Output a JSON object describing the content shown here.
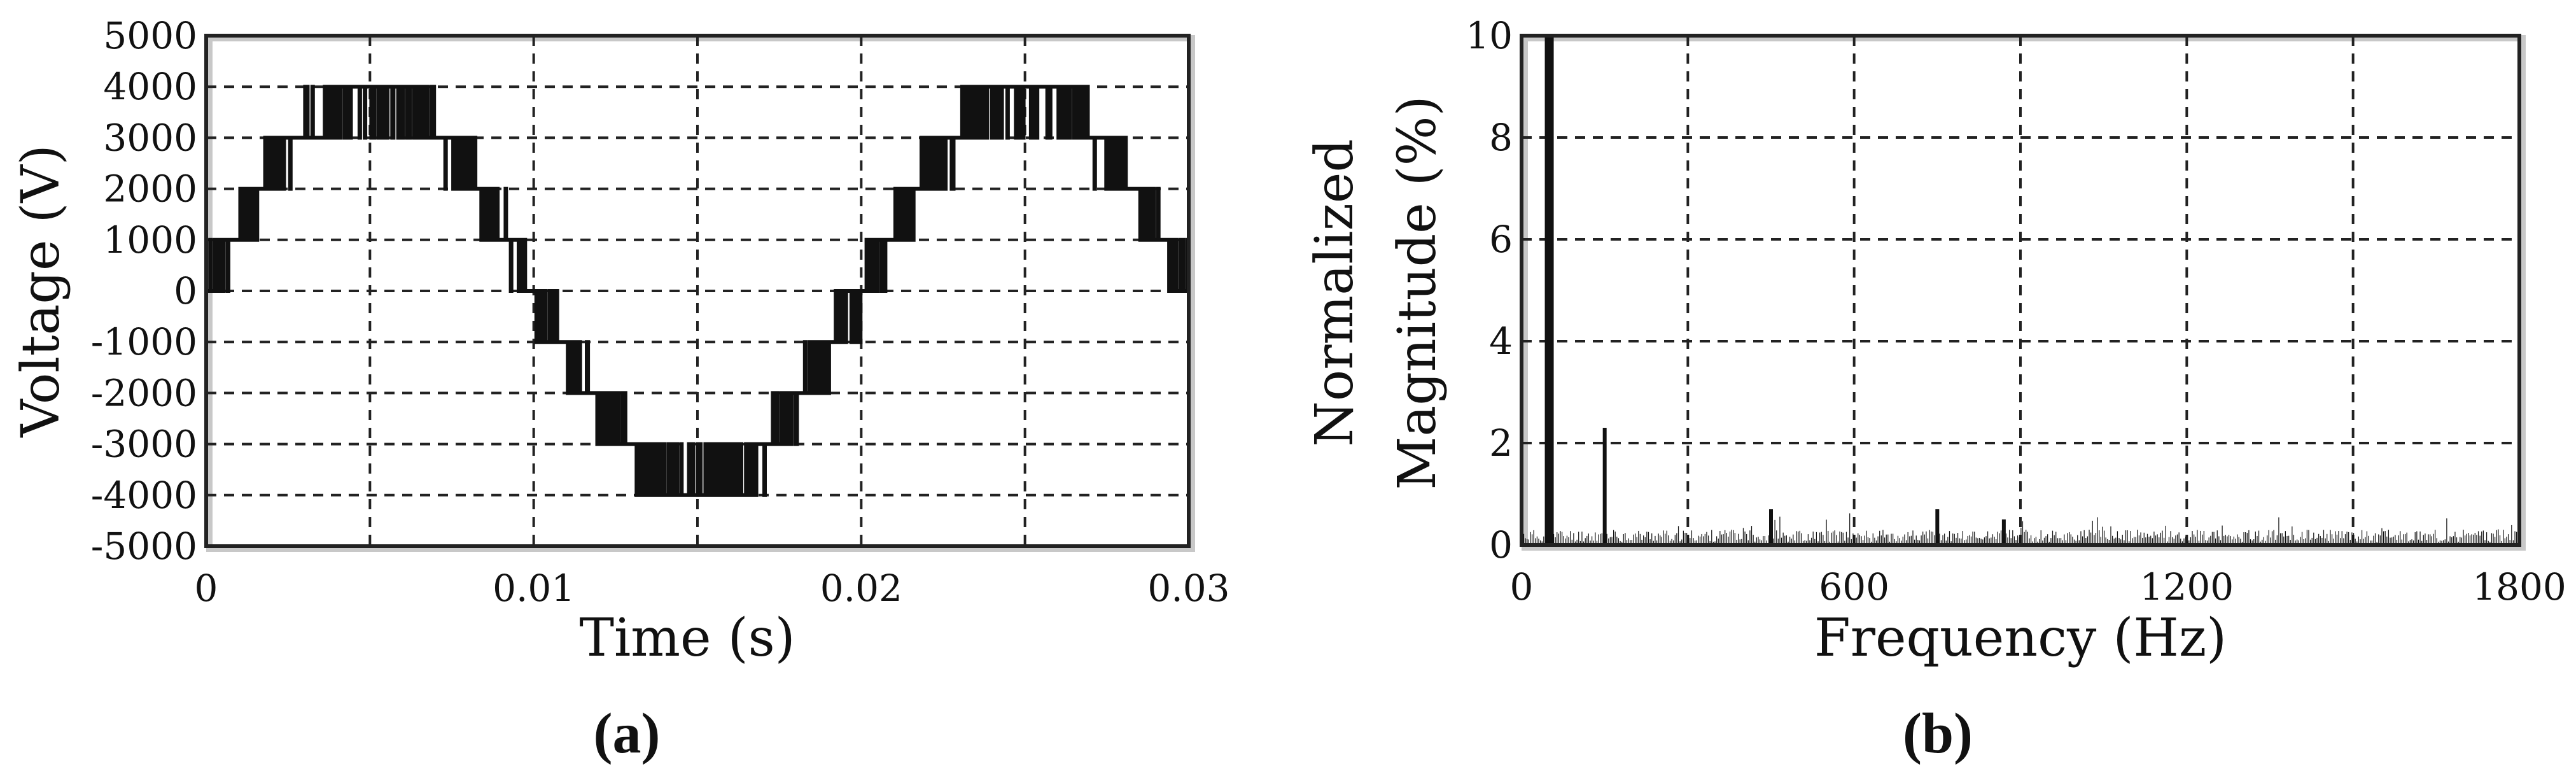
{
  "chart_data": [
    {
      "type": "line",
      "panel_label": "(a)",
      "title": "",
      "xlabel": "Time (s)",
      "ylabel": "Voltage (V)",
      "xlim": [
        0,
        0.03
      ],
      "ylim": [
        -5000,
        5000
      ],
      "x_ticks": [
        "0",
        "0.01",
        "0.02",
        "0.03"
      ],
      "x_tick_values": [
        0,
        0.01,
        0.02,
        0.03
      ],
      "y_ticks": [
        "5000",
        "4000",
        "3000",
        "2000",
        "1000",
        "0",
        "-1000",
        "-2000",
        "-3000",
        "-4000",
        "-5000"
      ],
      "y_tick_values": [
        5000,
        4000,
        3000,
        2000,
        1000,
        0,
        -1000,
        -2000,
        -3000,
        -4000,
        -5000
      ],
      "grid": true,
      "series": [
        {
          "description_values": "multilevel staircase waveform approximating a 50 Hz sine",
          "frequency_hz": 50,
          "amplitude_v": 3800,
          "level_step_v": 1000
        }
      ]
    },
    {
      "type": "bar",
      "panel_label": "(b)",
      "title": "",
      "xlabel": "Frequency (Hz)",
      "ylabel_line1": "Normalized",
      "ylabel_line2": "Magnitude (%)",
      "xlim": [
        0,
        1800
      ],
      "ylim": [
        0,
        10
      ],
      "x_ticks": [
        "0",
        "600",
        "1200",
        "1800"
      ],
      "x_tick_values": [
        0,
        600,
        1200,
        1800
      ],
      "y_ticks": [
        "10",
        "8",
        "6",
        "4",
        "2",
        "0"
      ],
      "y_tick_values": [
        10,
        8,
        6,
        4,
        2,
        0
      ],
      "grid": true,
      "harmonics": [
        {
          "freq": 50,
          "magnitude": 10
        },
        {
          "freq": 150,
          "magnitude": 2.3
        },
        {
          "freq": 450,
          "magnitude": 0.7
        },
        {
          "freq": 750,
          "magnitude": 0.7
        },
        {
          "freq": 870,
          "magnitude": 0.5
        }
      ],
      "noise_floor": 0.2
    }
  ]
}
